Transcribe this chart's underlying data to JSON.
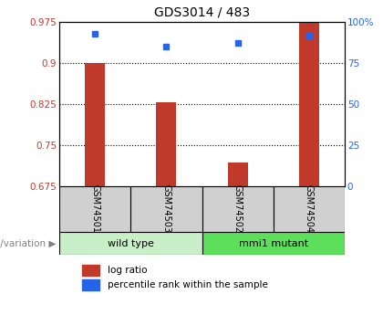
{
  "title": "GDS3014 / 483",
  "samples": [
    "GSM74501",
    "GSM74503",
    "GSM74502",
    "GSM74504"
  ],
  "log_ratio": [
    0.9,
    0.828,
    0.718,
    0.975
  ],
  "percentile_rank": [
    93,
    85,
    87,
    92
  ],
  "baseline": 0.675,
  "ylim_left": [
    0.675,
    0.975
  ],
  "ylim_right": [
    0,
    100
  ],
  "yticks_left": [
    0.675,
    0.75,
    0.825,
    0.9,
    0.975
  ],
  "yticks_right": [
    0,
    25,
    50,
    75,
    100
  ],
  "ytick_labels_right": [
    "0",
    "25",
    "50",
    "75",
    "100%"
  ],
  "gridlines": [
    0.75,
    0.825,
    0.9
  ],
  "bar_color": "#c0392b",
  "dot_color": "#2563eb",
  "groups": [
    {
      "label": "wild type",
      "indices": [
        0,
        1
      ],
      "color": "#c8efc8"
    },
    {
      "label": "mmi1 mutant",
      "indices": [
        2,
        3
      ],
      "color": "#5ce05c"
    }
  ],
  "group_label_prefix": "genotype/variation",
  "legend_bar_label": "log ratio",
  "legend_dot_label": "percentile rank within the sample",
  "title_fontsize": 10,
  "tick_fontsize": 7.5,
  "label_fontsize": 8,
  "sample_fontsize": 7,
  "group_fontsize": 8
}
